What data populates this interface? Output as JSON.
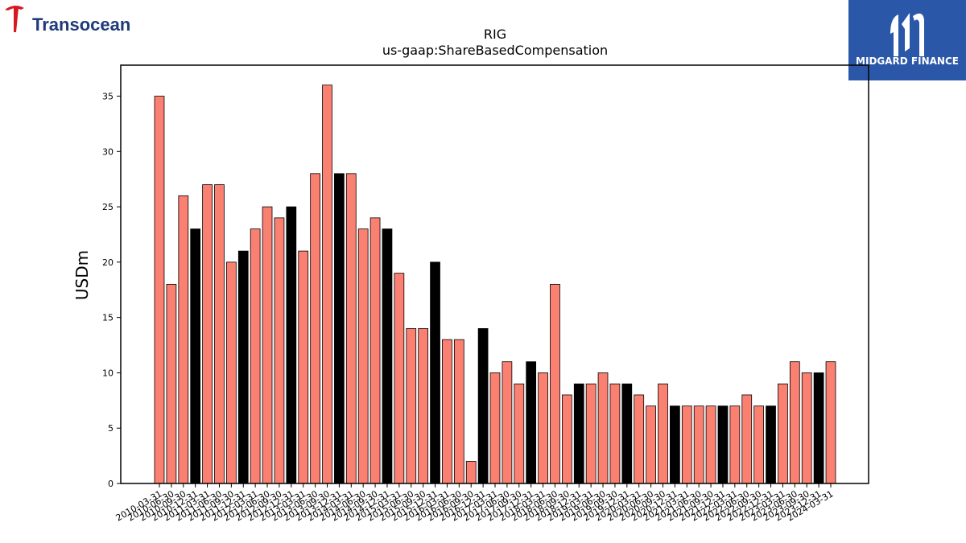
{
  "logos": {
    "left_text": "Transocean",
    "right_text": "MIDGARD FINANCE",
    "left_brand_color": "#d71920",
    "left_text_color": "#1f3a7a",
    "right_bg_color": "#2b57a8"
  },
  "chart_data": {
    "type": "bar",
    "title": "RIG",
    "subtitle": "us-gaap:ShareBasedCompensation",
    "ylabel": "USDm",
    "xlabel": "",
    "ylim": [
      0,
      37.8
    ],
    "yticks": [
      0,
      5,
      10,
      15,
      20,
      25,
      30,
      35
    ],
    "grid": false,
    "bar_color": "#fa8072",
    "highlight_color": "#000000",
    "categories": [
      "2010-03-31",
      "2010-06-30",
      "2010-09-30",
      "2010-12-31",
      "2011-03-31",
      "2011-06-30",
      "2011-09-30",
      "2011-12-31",
      "2012-03-31",
      "2012-06-30",
      "2012-09-30",
      "2012-12-31",
      "2013-03-31",
      "2013-06-30",
      "2013-09-30",
      "2013-12-31",
      "2014-03-31",
      "2014-06-30",
      "2014-09-30",
      "2014-12-31",
      "2015-03-31",
      "2015-06-30",
      "2015-09-30",
      "2015-12-31",
      "2016-03-31",
      "2016-06-30",
      "2016-09-30",
      "2016-12-31",
      "2017-03-31",
      "2017-06-30",
      "2017-09-30",
      "2017-12-31",
      "2018-03-31",
      "2018-06-30",
      "2018-09-30",
      "2018-12-31",
      "2019-03-31",
      "2019-06-30",
      "2019-09-30",
      "2019-12-31",
      "2020-03-31",
      "2020-06-30",
      "2020-09-30",
      "2020-12-31",
      "2021-03-31",
      "2021-06-30",
      "2021-09-30",
      "2021-12-31",
      "2022-03-31",
      "2022-06-30",
      "2022-09-30",
      "2022-12-31",
      "2023-03-31",
      "2023-06-30",
      "2023-09-30",
      "2023-12-31",
      "2024-03-31"
    ],
    "values": [
      35,
      18,
      26,
      23,
      27,
      27,
      20,
      21,
      23,
      25,
      24,
      25,
      21,
      28,
      36,
      28,
      28,
      23,
      24,
      23,
      19,
      14,
      14,
      20,
      13,
      13,
      2,
      14,
      10,
      11,
      9,
      11,
      10,
      18,
      8,
      9,
      9,
      10,
      9,
      9,
      8,
      7,
      9,
      7,
      7,
      7,
      7,
      7,
      7,
      8,
      7,
      7,
      9,
      11,
      10,
      10,
      11
    ],
    "highlight": [
      false,
      false,
      false,
      true,
      false,
      false,
      false,
      true,
      false,
      false,
      false,
      true,
      false,
      false,
      false,
      true,
      false,
      false,
      false,
      true,
      false,
      false,
      false,
      true,
      false,
      false,
      false,
      true,
      false,
      false,
      false,
      true,
      false,
      false,
      false,
      true,
      false,
      false,
      false,
      true,
      false,
      false,
      false,
      true,
      false,
      false,
      false,
      true,
      false,
      false,
      false,
      true,
      false,
      false,
      false,
      true,
      false
    ]
  }
}
